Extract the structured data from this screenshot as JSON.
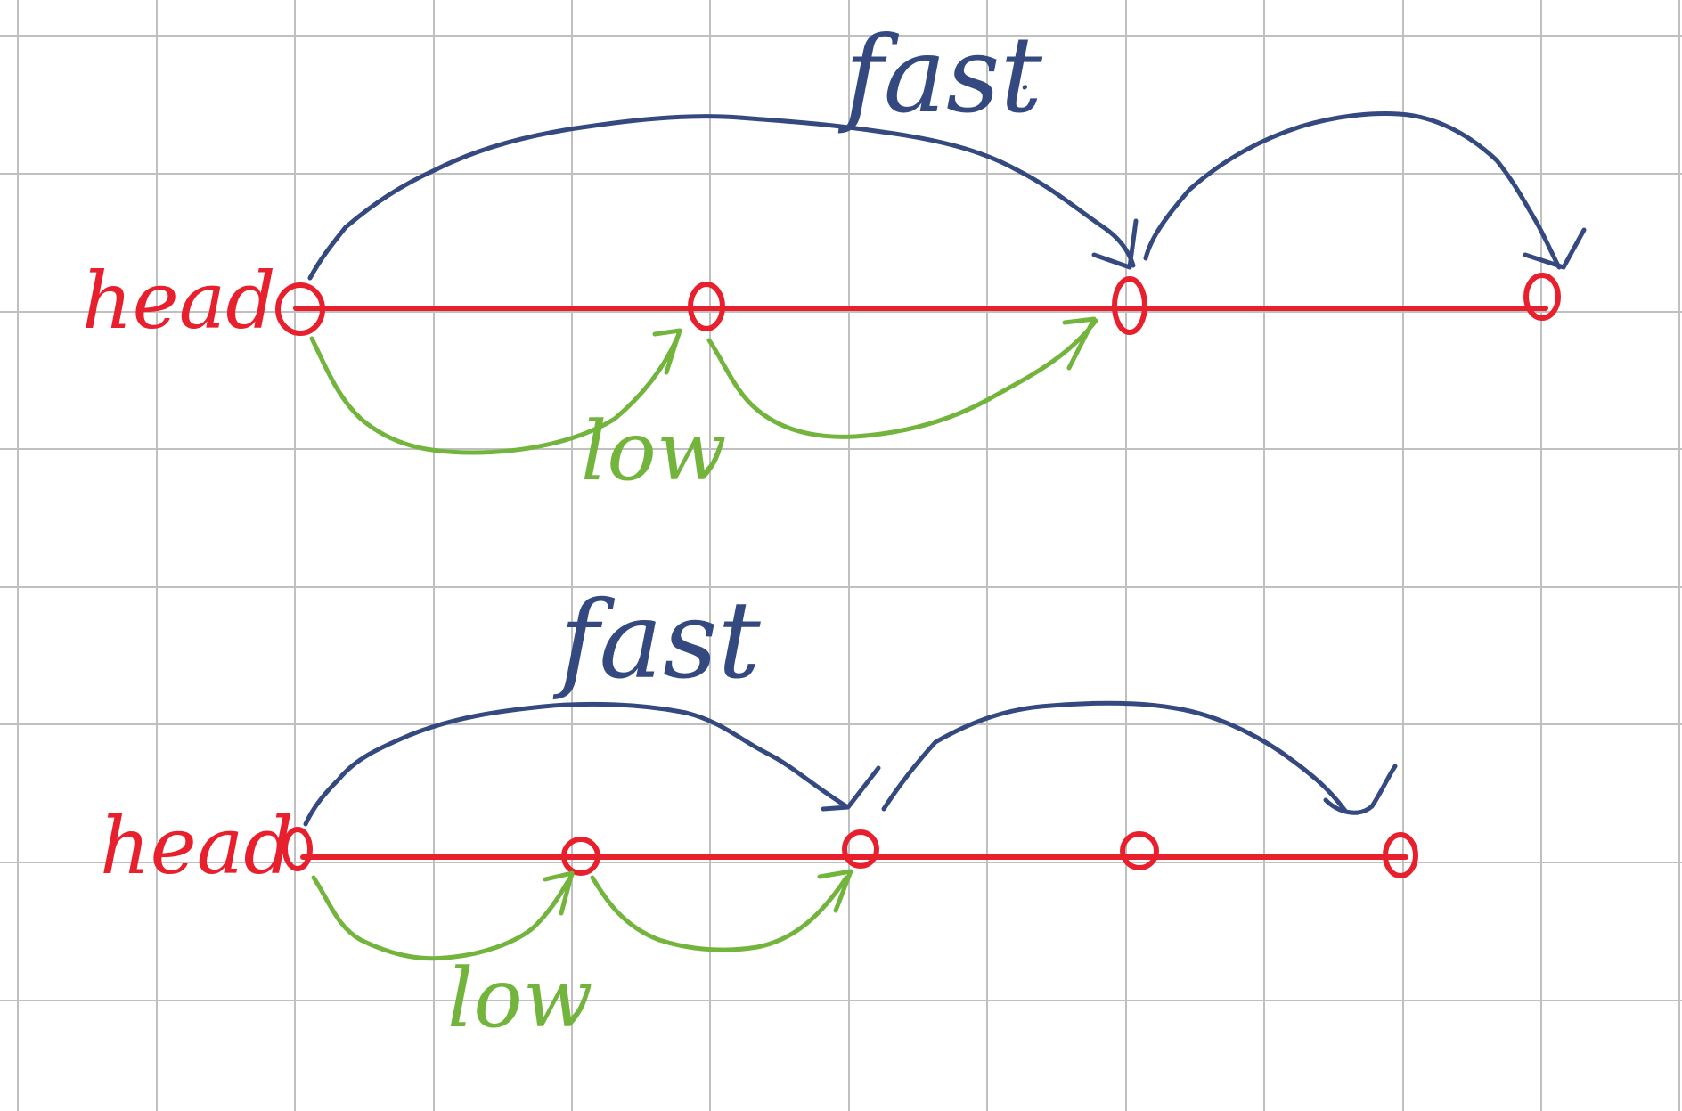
{
  "background": "#ffffff",
  "colors": {
    "grid": "#c0c0c0",
    "list": "#e8202e",
    "fast": "#34497f",
    "slow": "#72b43c"
  },
  "diagrams": [
    {
      "id": "top",
      "head_label": "head",
      "fast_label": "fast",
      "fast_label_suffix": ".",
      "slow_label": "low"
    },
    {
      "id": "bottom",
      "head_label": "head",
      "fast_label": "fast",
      "fast_label_suffix": "",
      "slow_label": "low"
    }
  ]
}
